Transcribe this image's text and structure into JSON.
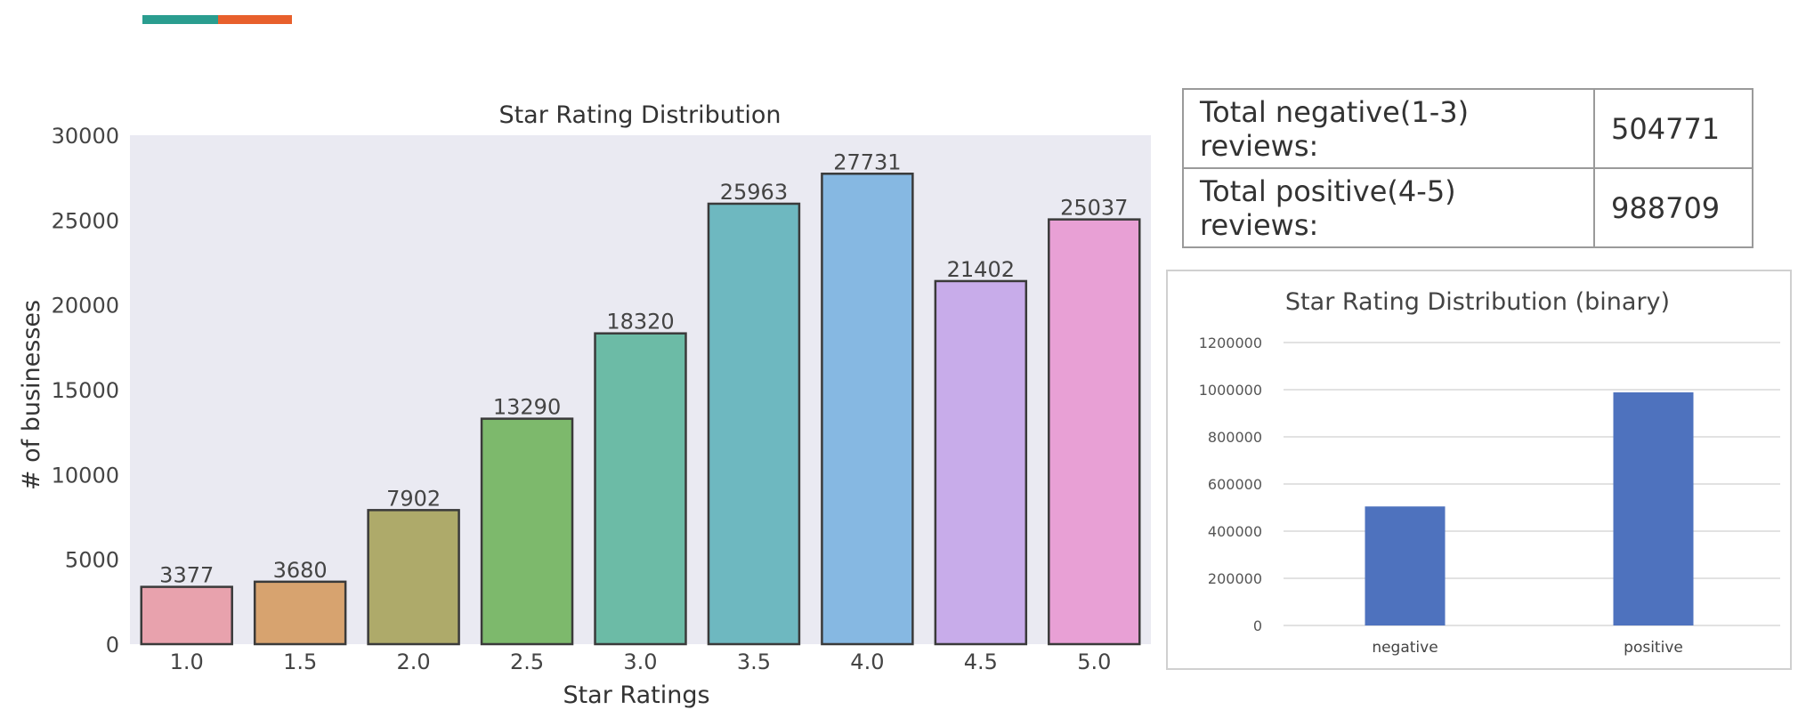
{
  "accent_colors": [
    "#2a9d8f",
    "#e8602c"
  ],
  "summary_table": {
    "rows": [
      {
        "label": "Total negative(1-3) reviews:",
        "value": "504771"
      },
      {
        "label": "Total positive(4-5) reviews:",
        "value": "988709"
      }
    ]
  },
  "chart_data": [
    {
      "type": "bar",
      "title": "Star Rating Distribution",
      "xlabel": "Star Ratings",
      "ylabel": "# of businesses",
      "categories": [
        "1.0",
        "1.5",
        "2.0",
        "2.5",
        "3.0",
        "3.5",
        "4.0",
        "4.5",
        "5.0"
      ],
      "values": [
        3377,
        3680,
        7902,
        13290,
        18320,
        25963,
        27731,
        21402,
        25037
      ],
      "data_labels": [
        "3377",
        "3680",
        "7902",
        "13290",
        "18320",
        "25963",
        "27731",
        "21402",
        "25037"
      ],
      "colors": [
        "#e8a2ad",
        "#d7a36f",
        "#aeaa6a",
        "#7db96c",
        "#6cbba6",
        "#6eb8c0",
        "#86b8e2",
        "#c8acea",
        "#e8a0d5"
      ],
      "ylim": [
        0,
        30000
      ],
      "yticks": [
        "0",
        "5000",
        "10000",
        "15000",
        "20000",
        "25000",
        "30000"
      ],
      "background": "#eaeaf2",
      "grid": false
    },
    {
      "type": "bar",
      "title": "Star Rating Distribution (binary)",
      "xlabel": "",
      "ylabel": "",
      "categories": [
        "negative",
        "positive"
      ],
      "values": [
        504771,
        988709
      ],
      "color": "#4e72be",
      "ylim": [
        0,
        1200000
      ],
      "yticks": [
        "0",
        "200000",
        "400000",
        "600000",
        "800000",
        "1000000",
        "1200000"
      ],
      "grid": true
    }
  ]
}
